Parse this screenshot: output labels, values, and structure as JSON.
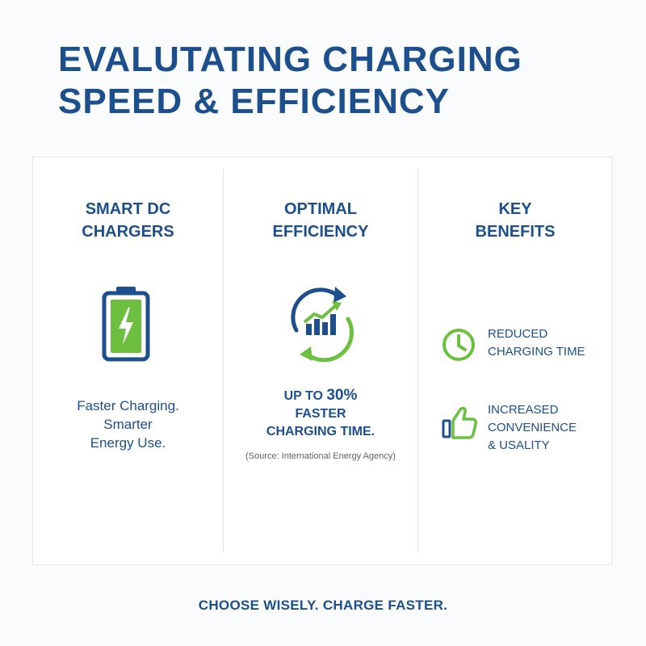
{
  "title": {
    "line1": "EVALUTATING CHARGING",
    "line2": "SPEED & EFFICIENCY"
  },
  "columns": {
    "chargers": {
      "heading_line1": "SMART DC",
      "heading_line2": "CHARGERS",
      "icon": "battery-charging-icon",
      "tagline_line1": "Faster Charging.",
      "tagline_line2": "Smarter",
      "tagline_line3": "Energy Use."
    },
    "efficiency": {
      "heading_line1": "OPTIMAL",
      "heading_line2": "EFFICIENCY",
      "icon": "cycle-growth-chart-icon",
      "stat_line1_prefix": "UP TO ",
      "stat_line1_value": "30%",
      "stat_line2": "FASTER",
      "stat_line3": "CHARGING TIME.",
      "source": "(Source: International Energy Agency)"
    },
    "benefits": {
      "heading_line1": "KEY",
      "heading_line2": "BENEFITS",
      "items": [
        {
          "icon": "clock-icon",
          "line1": "REDUCED",
          "line2": "CHARGING TIME",
          "line3": ""
        },
        {
          "icon": "thumbs-up-icon",
          "line1": "INCREASED",
          "line2": "CONVENIENCE",
          "line3": "& USALITY"
        }
      ]
    }
  },
  "footer": "CHOOSE WISELY. CHARGE FASTER.",
  "colors": {
    "primary_blue": "#1d4f8c",
    "accent_green": "#6cbf3f",
    "panel_border": "#e3e6ea"
  }
}
